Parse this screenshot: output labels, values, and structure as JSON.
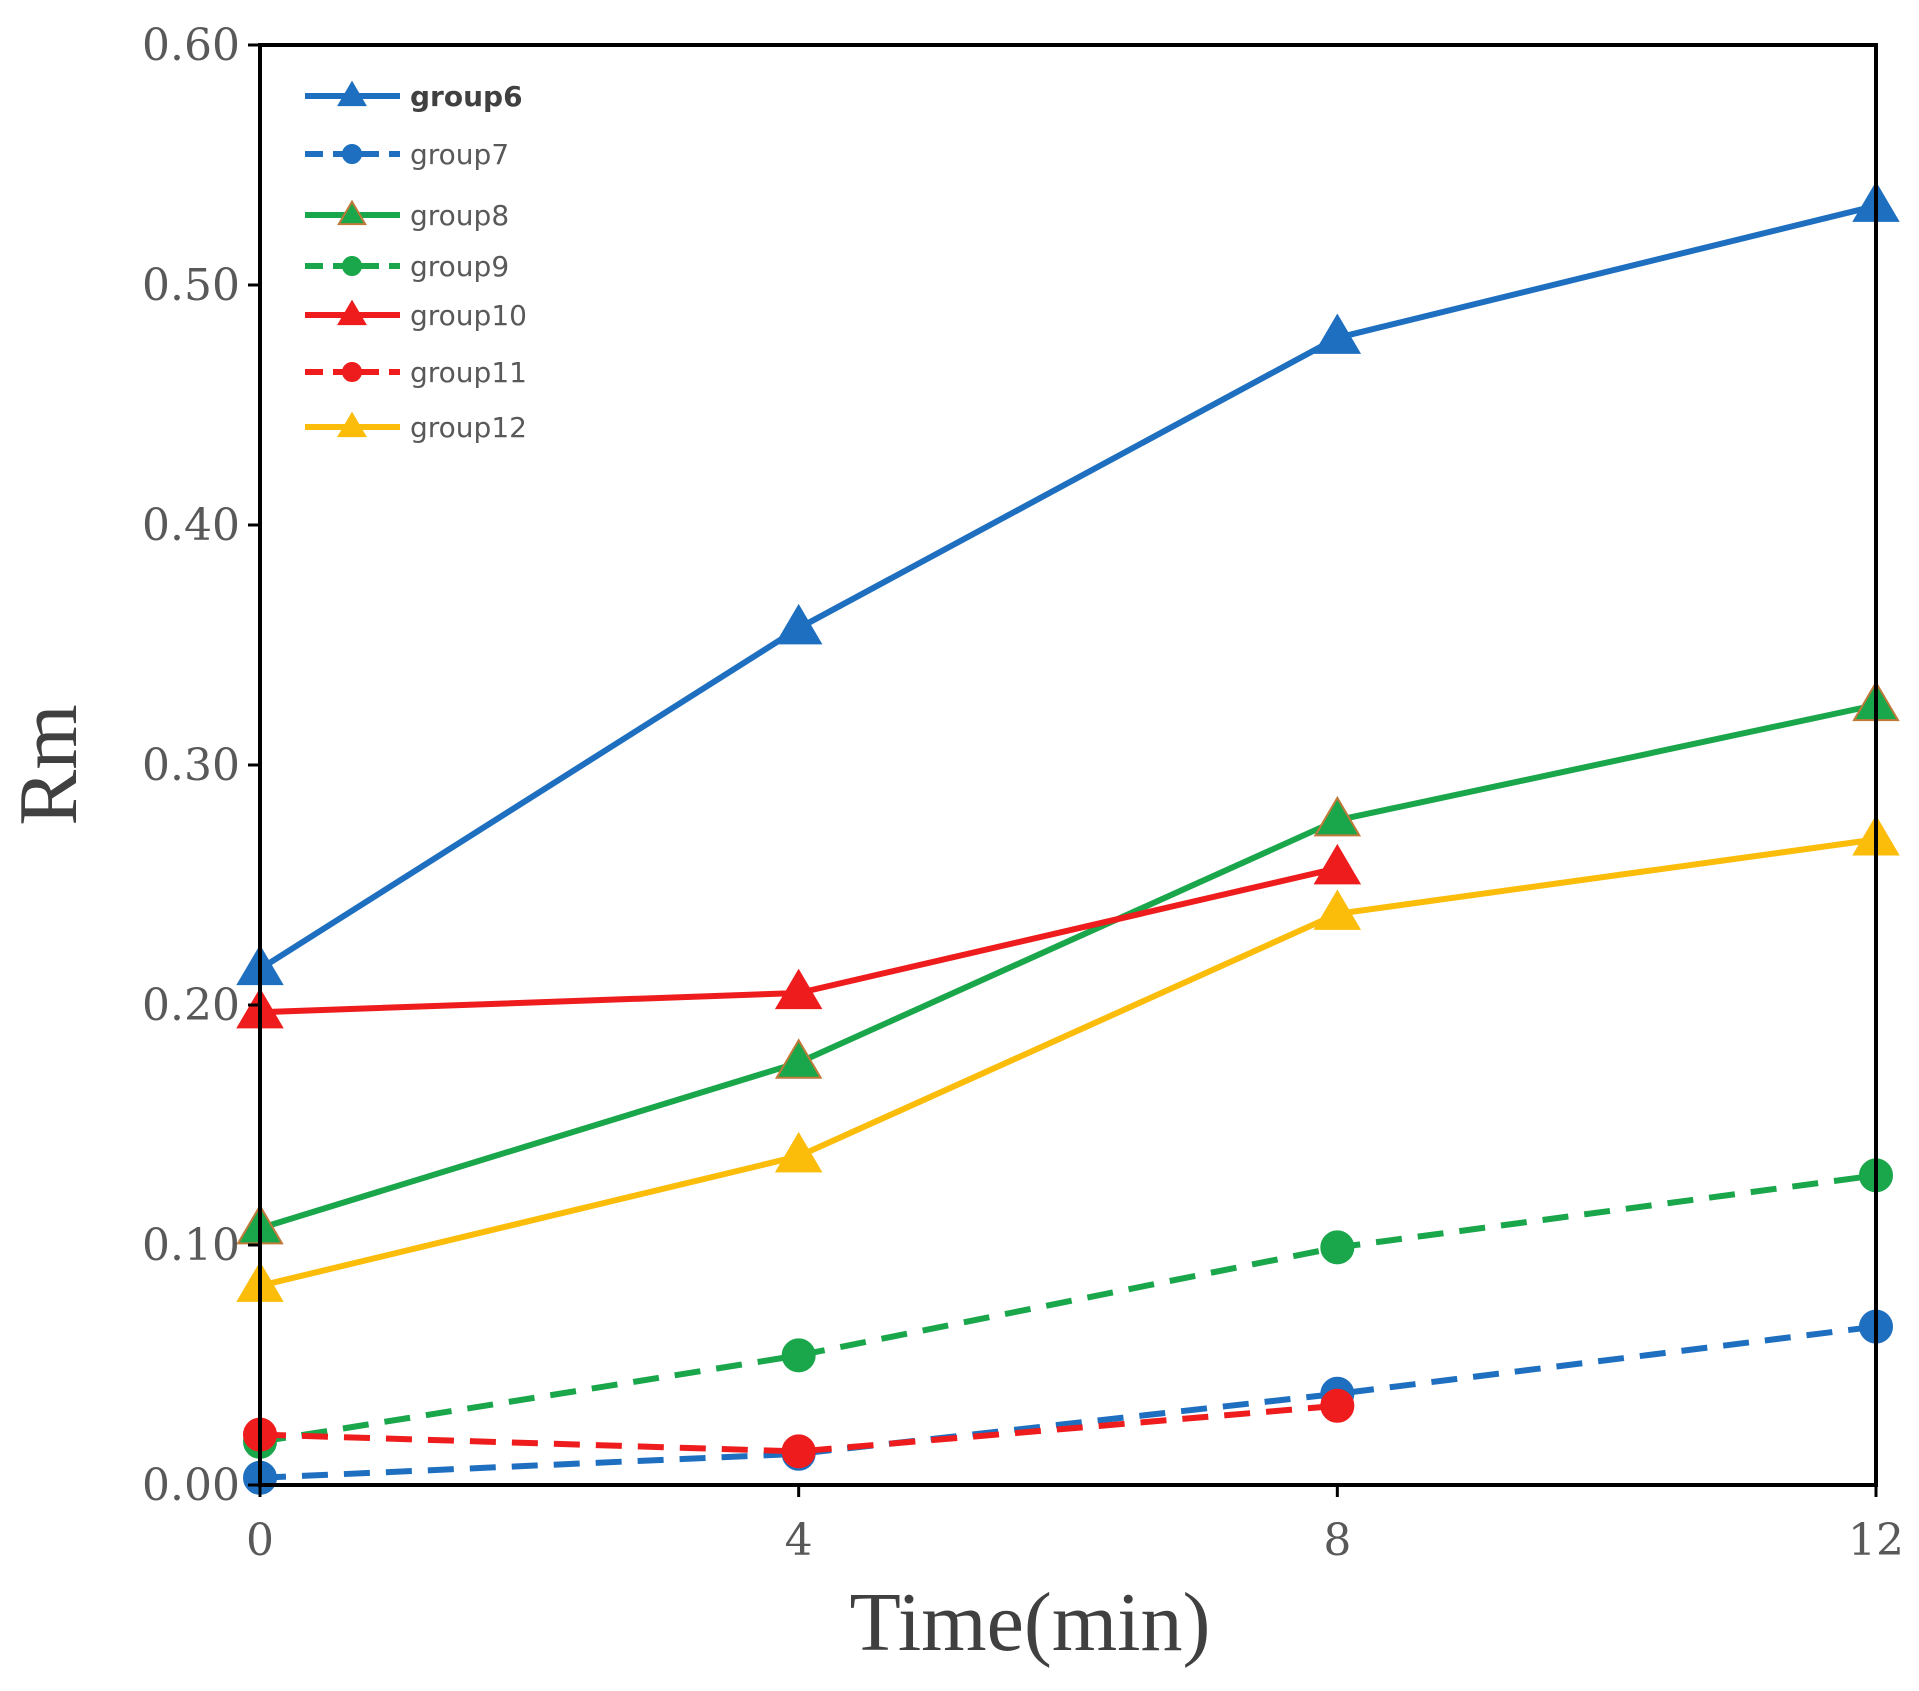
{
  "chart_data": {
    "type": "line",
    "title": "",
    "xlabel": "Time(min)",
    "ylabel": "Rm",
    "x": [
      0,
      4,
      8,
      12
    ],
    "x_tick_labels": [
      "0",
      "4",
      "8",
      "12"
    ],
    "y_tick_labels": [
      "0.00",
      "0.10",
      "0.20",
      "0.30",
      "0.40",
      "0.50",
      "0.60"
    ],
    "y_ticks": [
      0,
      0.1,
      0.2,
      0.3,
      0.4,
      0.5,
      0.6
    ],
    "xlim": [
      0,
      12
    ],
    "ylim": [
      0,
      0.6
    ],
    "grid": false,
    "legend_position": "top-left",
    "series": [
      {
        "name": "group6",
        "values": [
          0.215,
          0.357,
          0.478,
          0.533
        ],
        "color": "#1f6fc0",
        "dash": "solid",
        "marker": "triangle",
        "marker_stroke": "#1f6fc0"
      },
      {
        "name": "group7",
        "values": [
          0.003,
          0.013,
          0.038,
          0.066
        ],
        "color": "#1f6fc0",
        "dash": "dashed",
        "marker": "circle",
        "marker_stroke": "#1f6fc0"
      },
      {
        "name": "group8",
        "values": [
          0.107,
          0.176,
          0.277,
          0.325
        ],
        "color": "#1aa64a",
        "dash": "solid",
        "marker": "triangle",
        "marker_stroke": "#c07a3a"
      },
      {
        "name": "group9",
        "values": [
          0.018,
          0.054,
          0.099,
          0.129
        ],
        "color": "#1aa64a",
        "dash": "dashed",
        "marker": "circle",
        "marker_stroke": "#1aa64a"
      },
      {
        "name": "group10",
        "values": [
          0.197,
          0.205,
          0.257,
          null
        ],
        "color": "#ee1c1c",
        "dash": "solid",
        "marker": "triangle",
        "marker_stroke": "#ee1c1c"
      },
      {
        "name": "group11",
        "values": [
          0.021,
          0.014,
          0.033,
          null
        ],
        "color": "#ee1c1c",
        "dash": "dashed",
        "marker": "circle",
        "marker_stroke": "#ee1c1c"
      },
      {
        "name": "group12",
        "values": [
          0.083,
          0.137,
          0.238,
          0.269
        ],
        "color": "#fbbd0a",
        "dash": "solid",
        "marker": "triangle",
        "marker_stroke": "#fbbd0a"
      }
    ]
  }
}
